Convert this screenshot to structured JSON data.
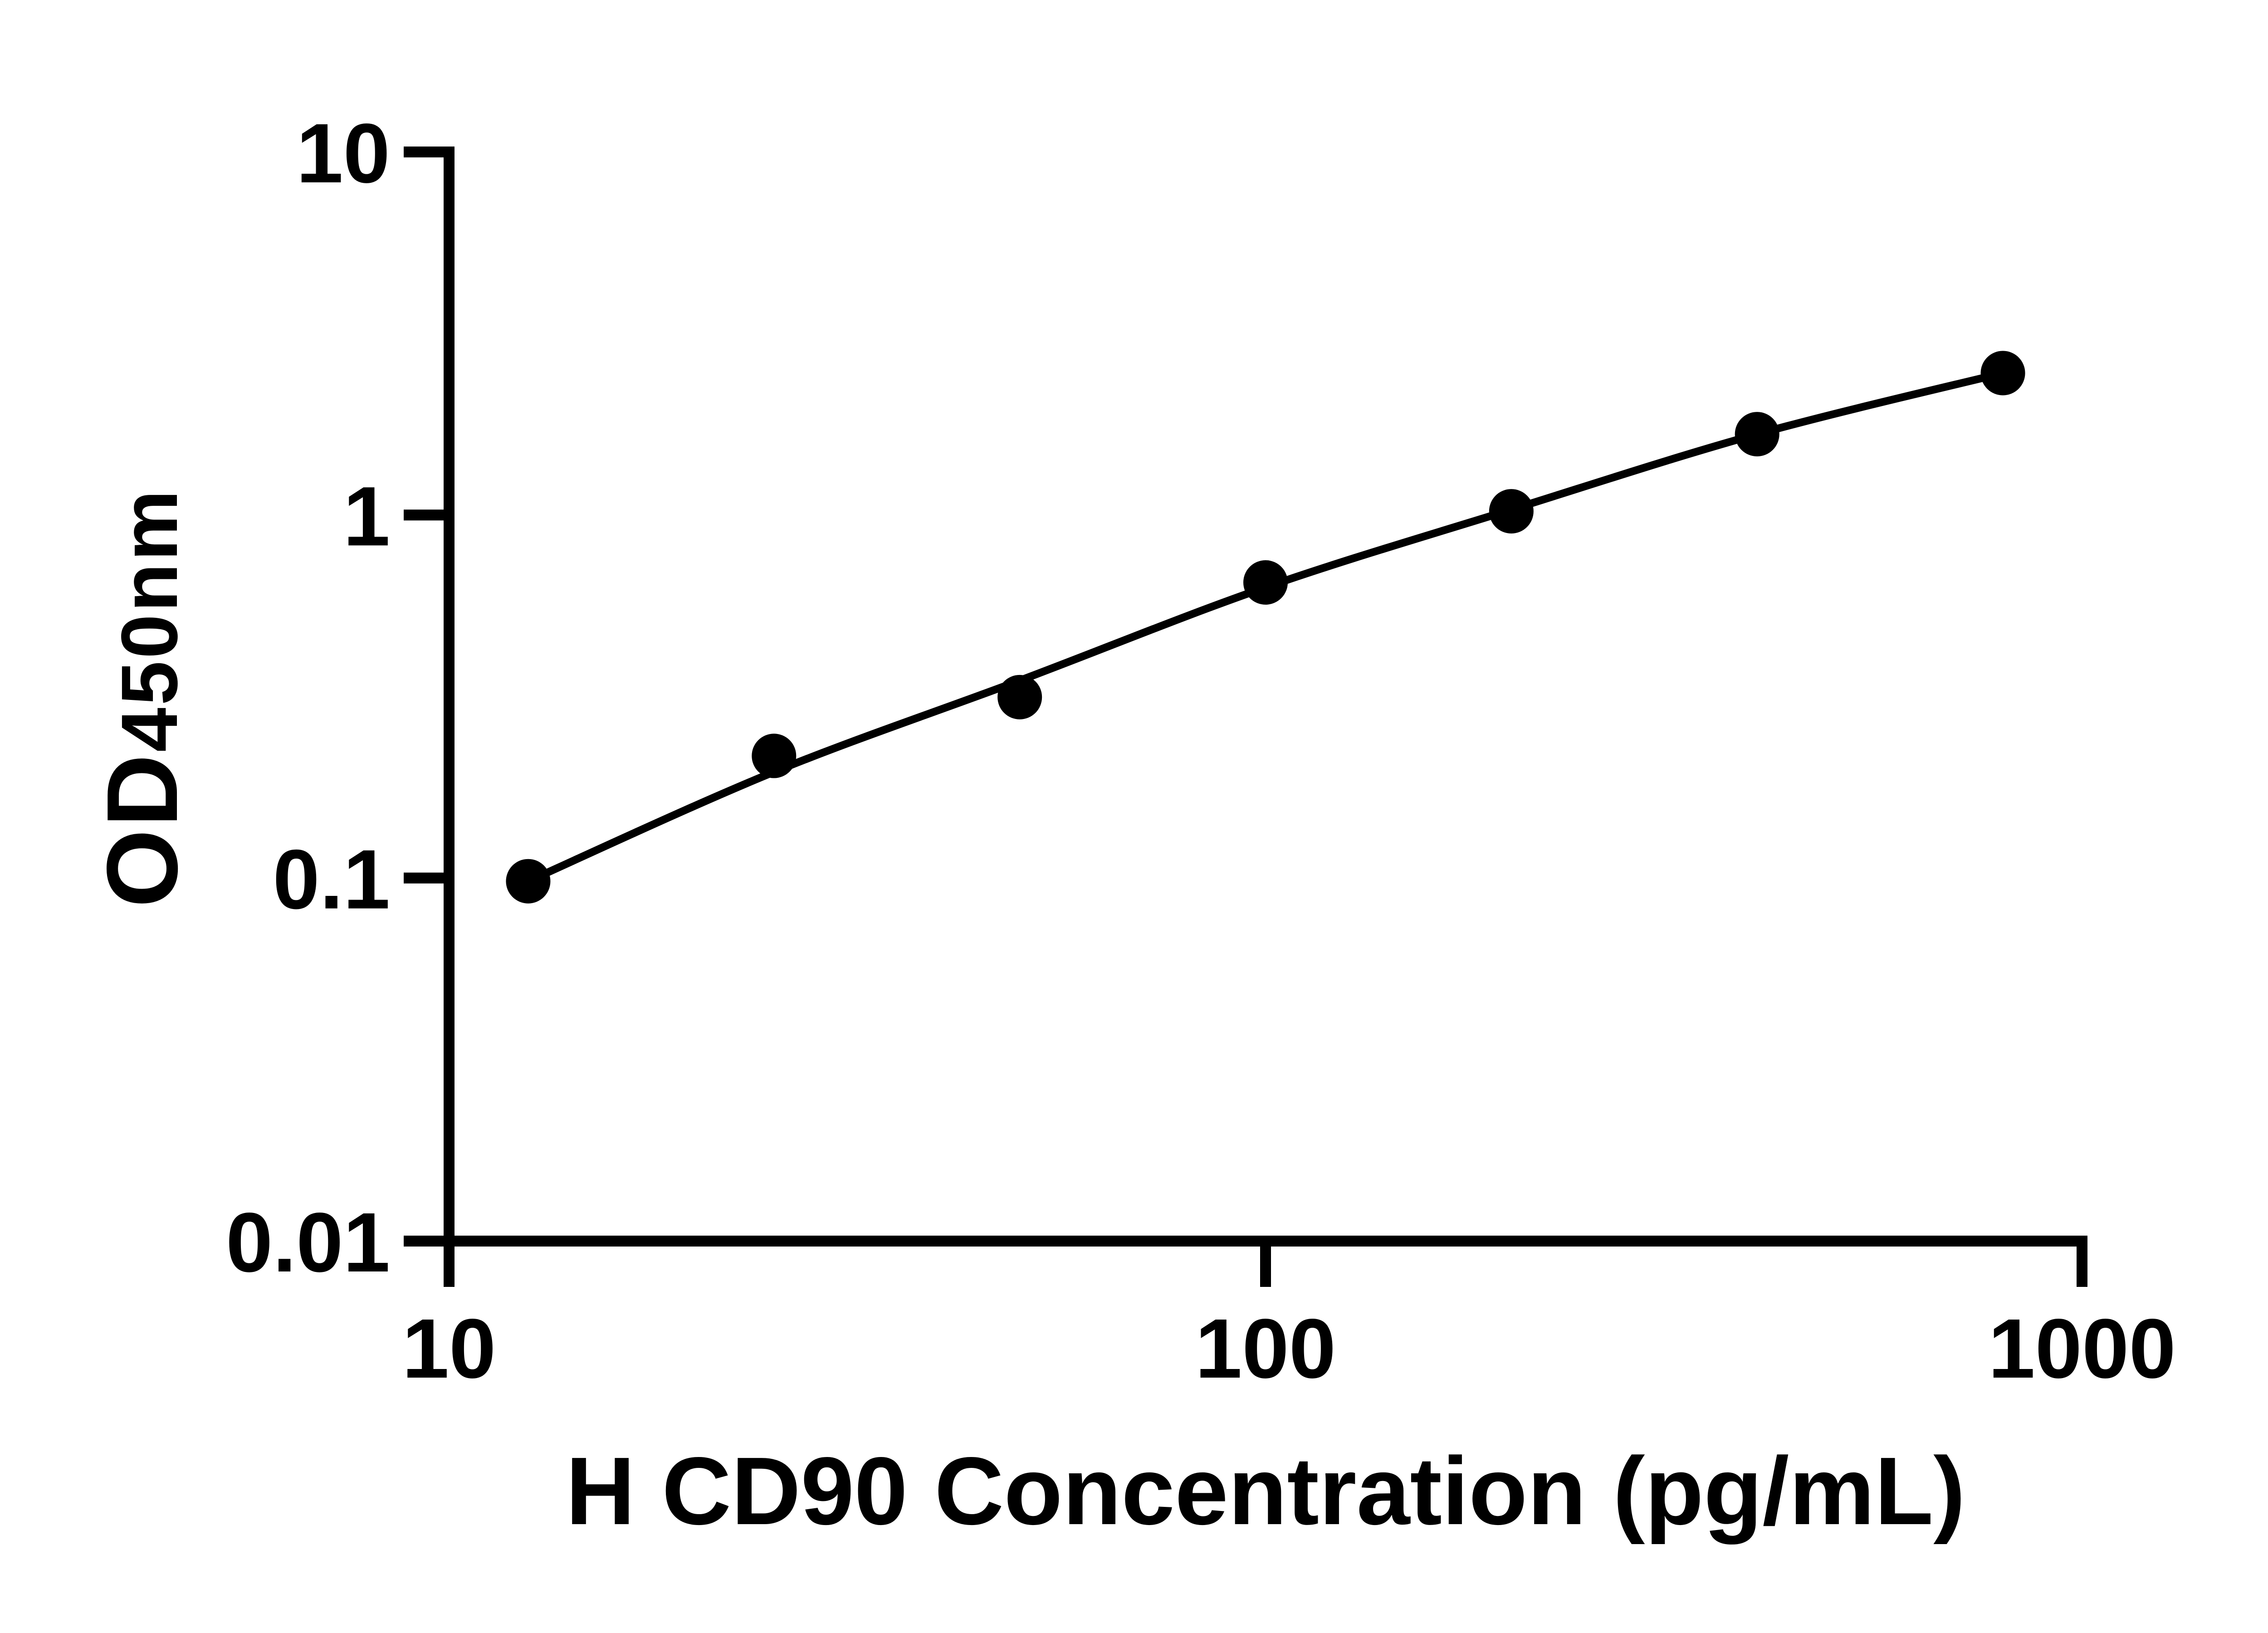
{
  "chart_data": {
    "type": "scatter",
    "title": "",
    "xlabel": "H CD90 Concentration (pg/mL)",
    "ylabel_main": "OD",
    "ylabel_sub": "450nm",
    "x": [
      12.5,
      25,
      50,
      100,
      200,
      400,
      800
    ],
    "od": [
      0.098,
      0.217,
      0.315,
      0.652,
      1.024,
      1.67,
      2.46
    ],
    "curve_od": [
      0.098,
      0.196,
      0.35,
      0.632,
      1.035,
      1.67,
      2.46
    ],
    "xlim": [
      10,
      1000
    ],
    "ylim": [
      0.01,
      10
    ],
    "x_ticks": [
      10,
      100,
      1000
    ],
    "x_tick_labels": [
      "10",
      "100",
      "1000"
    ],
    "y_ticks": [
      10,
      1,
      0.1,
      0.01
    ],
    "y_tick_labels": [
      "10",
      "1",
      "0.1",
      "0.01"
    ],
    "x_scale": "log",
    "y_scale": "log",
    "grid": false,
    "legend": null,
    "marker_color": "#000000",
    "line_color": "#000000",
    "axis_color": "#000000",
    "background": "#ffffff"
  }
}
